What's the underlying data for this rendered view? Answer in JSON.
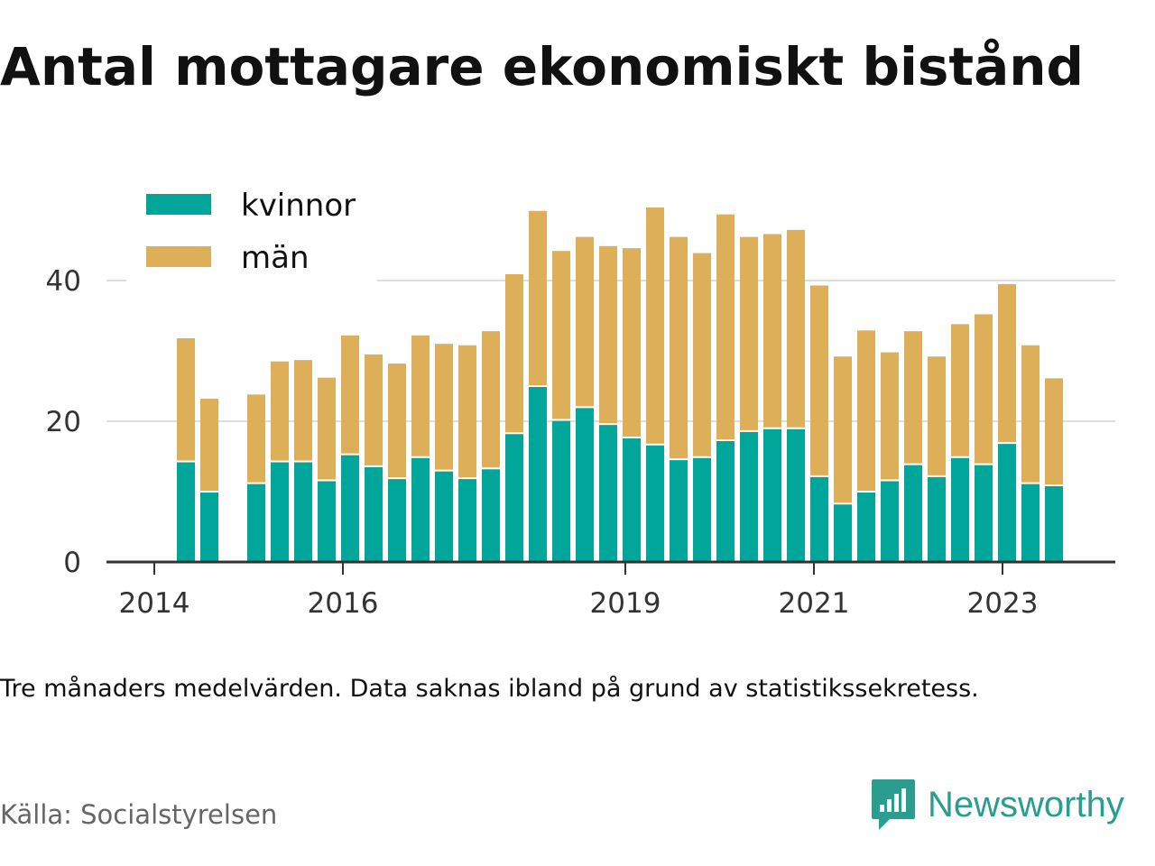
{
  "title": "Antal mottagare ekonomiskt bistånd",
  "note": "Tre månaders medelvärden. Data saknas ibland på grund av statistikssekretess.",
  "source": "Källa: Socialstyrelsen",
  "brand": {
    "name": "Newsworthy",
    "icon": "newsworthy-logo-icon",
    "color": "#2a9d8f"
  },
  "colors": {
    "kvinnor": "#00a699",
    "man": "#dcaf58",
    "grid": "#dddddd",
    "axis": "#333333"
  },
  "chart_data": {
    "type": "bar",
    "stacked": true,
    "x_ticks": [
      "2014",
      "2016",
      "2019",
      "2021",
      "2023"
    ],
    "y_ticks": [
      "0",
      "20",
      "40"
    ],
    "ylim": [
      0,
      55
    ],
    "grid": true,
    "legend_position": "top-left",
    "series": [
      {
        "name": "kvinnor",
        "values": [
          14.3,
          10,
          null,
          11.2,
          14.3,
          14.3,
          11.6,
          15.3,
          13.6,
          11.9,
          14.9,
          13,
          11.9,
          13.3,
          18.3,
          25,
          20.2,
          22,
          19.6,
          17.7,
          16.7,
          14.6,
          14.9,
          17.3,
          18.6,
          19,
          19,
          12.2,
          8.3,
          10,
          11.6,
          13.9,
          12.2,
          14.9,
          13.9,
          16.9,
          11.2,
          10.9
        ]
      },
      {
        "name": "män",
        "values": [
          17.5,
          13.2,
          null,
          12.6,
          14.2,
          14.4,
          14.6,
          16.9,
          15.9,
          16.3,
          17.3,
          18,
          18.9,
          19.5,
          22.6,
          24.9,
          24,
          24.2,
          25.3,
          26.9,
          33.7,
          31.6,
          29,
          32.1,
          27.6,
          27.6,
          28.2,
          27.1,
          20.9,
          22.9,
          18.2,
          18.9,
          17,
          18.9,
          21.3,
          22.6,
          19.6,
          15.2
        ]
      }
    ]
  }
}
